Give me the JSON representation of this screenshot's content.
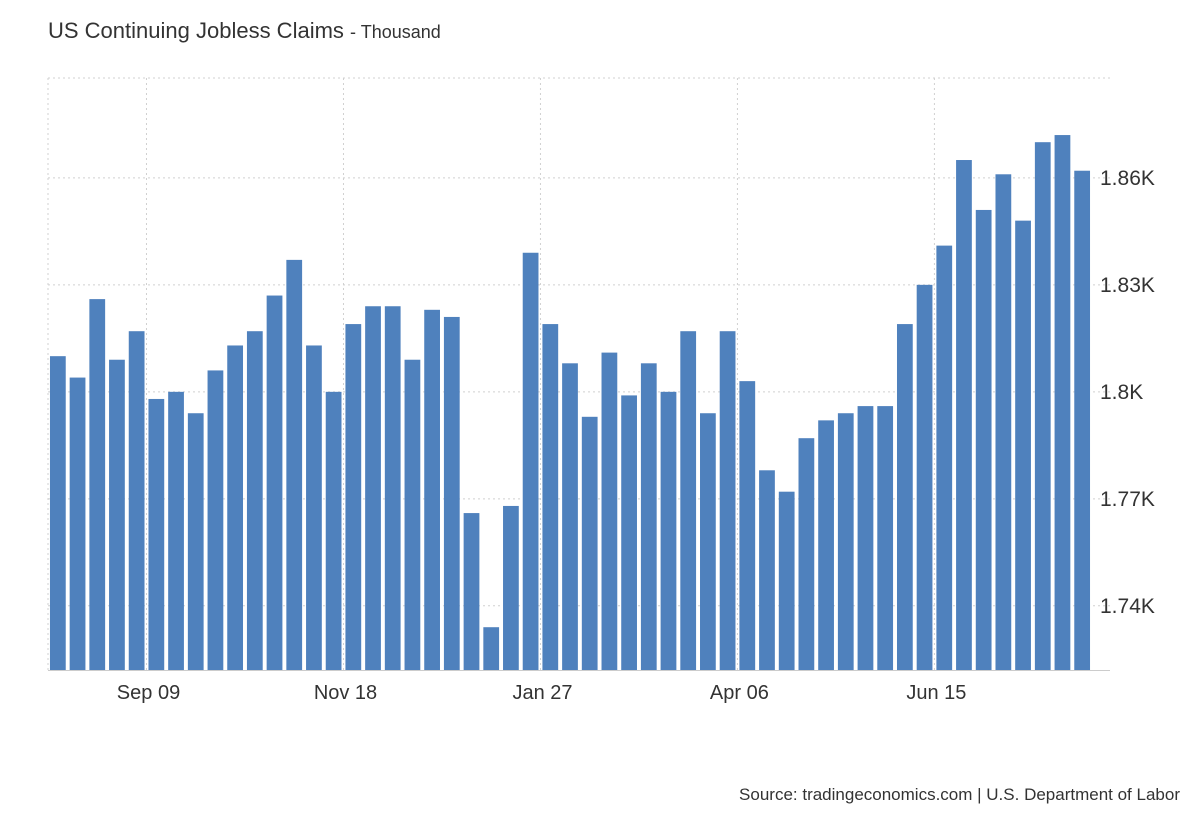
{
  "header": {
    "title": "US Continuing Jobless Claims",
    "subtitle": "- Thousand"
  },
  "footer": {
    "source": "Source: tradingeconomics.com | U.S. Department of Labor"
  },
  "colors": {
    "bar": "#4f81bd",
    "grid": "#d0d0d0",
    "axis_text": "#333333"
  },
  "chart_data": {
    "type": "bar",
    "title": "US Continuing Jobless Claims",
    "subtitle": "Thousand",
    "xlabel": "",
    "ylabel": "",
    "ylim": [
      1722,
      1888
    ],
    "yticks": [
      1740,
      1770,
      1800,
      1830,
      1860
    ],
    "ytick_labels": [
      "1.74K",
      "1.77K",
      "1.8K",
      "1.83K",
      "1.86K"
    ],
    "xtick_labels": [
      {
        "label": "Sep 09",
        "index": 5
      },
      {
        "label": "Nov 18",
        "index": 15
      },
      {
        "label": "Jan 27",
        "index": 25
      },
      {
        "label": "Apr 06",
        "index": 35
      },
      {
        "label": "Jun 15",
        "index": 45
      }
    ],
    "grid": true,
    "y_axis_side": "right",
    "values": [
      1810,
      1804,
      1826,
      1809,
      1817,
      1798,
      1800,
      1794,
      1806,
      1813,
      1817,
      1827,
      1837,
      1813,
      1800,
      1819,
      1824,
      1824,
      1809,
      1823,
      1821,
      1766,
      1734,
      1768,
      1839,
      1819,
      1808,
      1793,
      1811,
      1799,
      1808,
      1800,
      1817,
      1794,
      1817,
      1803,
      1778,
      1772,
      1787,
      1792,
      1794,
      1796,
      1796,
      1819,
      1830,
      1841,
      1865,
      1851,
      1861,
      1848,
      1870,
      1872,
      1862
    ]
  }
}
